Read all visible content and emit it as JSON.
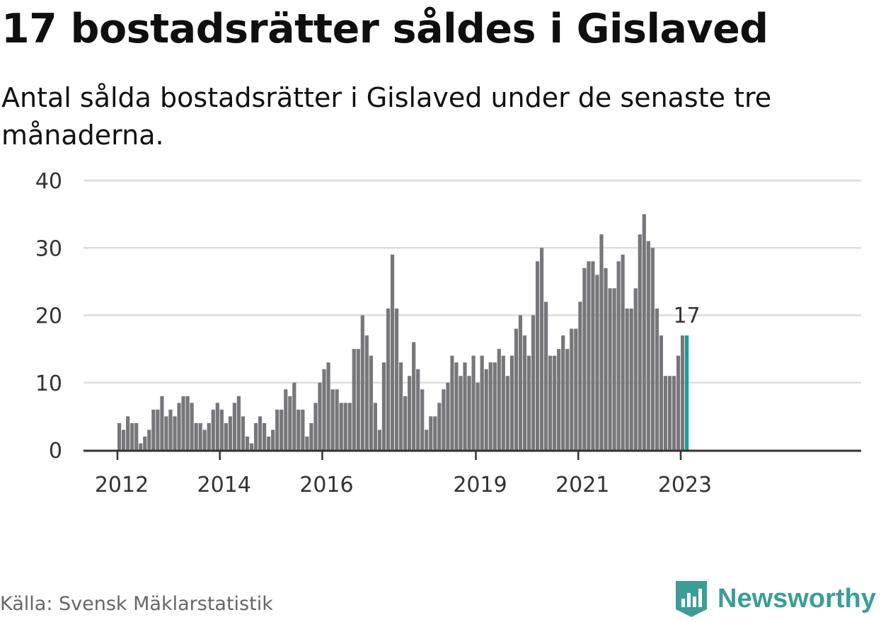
{
  "title": "17 bostadsrätter såldes i Gislaved",
  "subtitle": "Antal sålda bostadsrätter i Gislaved under de senaste tre månaderna.",
  "source": "Källa: Svensk Mäklarstatistik",
  "brand": {
    "name": "Newsworthy",
    "icon": "newsworthy-logo-icon",
    "color": "#3a9e96"
  },
  "colors": {
    "bar": "#77767b",
    "highlight": "#1a9e93",
    "grid": "#dddddd",
    "axis": "#333333"
  },
  "chart_data": {
    "type": "bar",
    "title": "17 bostadsrätter såldes i Gislaved",
    "xlabel": "",
    "ylabel": "",
    "ylim": [
      0,
      40
    ],
    "yticks": [
      0,
      10,
      20,
      30,
      40
    ],
    "x_ticks": [
      {
        "label": "2012",
        "index": 0
      },
      {
        "label": "2014",
        "index": 24
      },
      {
        "label": "2016",
        "index": 48
      },
      {
        "label": "2019",
        "index": 84
      },
      {
        "label": "2021",
        "index": 108
      },
      {
        "label": "2023",
        "index": 132
      }
    ],
    "start": "2012-01",
    "frequency": "monthly",
    "values": [
      4,
      3,
      5,
      4,
      4,
      1,
      2,
      3,
      6,
      6,
      8,
      5,
      6,
      5,
      7,
      8,
      8,
      7,
      4,
      4,
      3,
      4,
      6,
      7,
      6,
      4,
      5,
      7,
      8,
      5,
      2,
      1,
      4,
      5,
      4,
      2,
      3,
      6,
      6,
      9,
      8,
      10,
      6,
      6,
      2,
      4,
      7,
      10,
      12,
      13,
      9,
      9,
      7,
      7,
      7,
      15,
      15,
      20,
      17,
      14,
      7,
      3,
      13,
      21,
      29,
      21,
      13,
      8,
      11,
      16,
      12,
      9,
      3,
      5,
      5,
      7,
      9,
      10,
      14,
      13,
      11,
      13,
      11,
      14,
      10,
      14,
      12,
      13,
      13,
      15,
      14,
      11,
      14,
      18,
      20,
      17,
      14,
      20,
      28,
      30,
      22,
      14,
      14,
      15,
      17,
      15,
      18,
      18,
      22,
      27,
      28,
      28,
      26,
      32,
      27,
      24,
      24,
      28,
      29,
      21,
      21,
      24,
      32,
      35,
      31,
      30,
      21,
      17,
      11,
      11,
      11,
      14,
      17,
      17
    ],
    "highlight_index": 133,
    "highlight_label": "17",
    "grid": true
  }
}
